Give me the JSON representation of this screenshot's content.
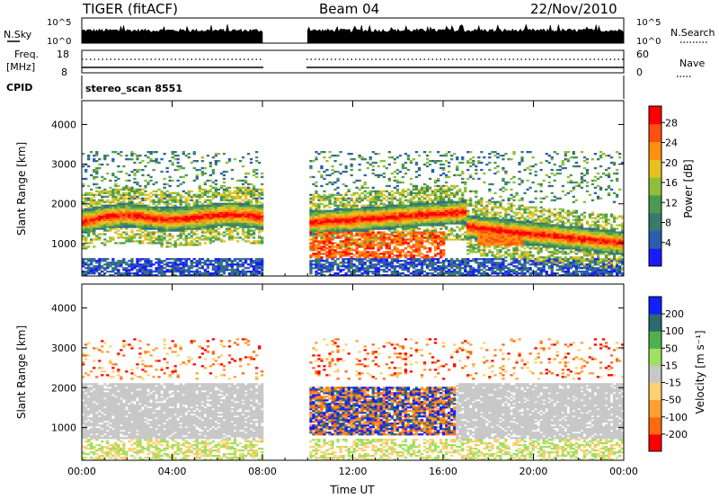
{
  "header": {
    "station": "TIGER (fitACF)",
    "beam": "Beam 04",
    "date": "22/Nov/2010"
  },
  "aux_panels": {
    "nsky_label": "N.Sky",
    "nsky_ticks": [
      "10^5",
      "10^0"
    ],
    "nsearch_label": "N.Search",
    "freq_label_line1": "Freq.",
    "freq_label_line2": "[MHz]",
    "freq_ticks": [
      "18",
      "8"
    ],
    "nave_label": "Nave",
    "nave_ticks": [
      "60",
      "0"
    ],
    "cpid_label": "CPID",
    "cpid_value": "stereo_scan 8551"
  },
  "colors": {
    "power_scale": [
      "#1a1aff",
      "#2a5db0",
      "#3a7a6a",
      "#4a9a50",
      "#8fbf3a",
      "#e8c020",
      "#ff9010",
      "#ff5010",
      "#ff0000"
    ],
    "velocity_scale": [
      "#ff0000",
      "#ff6a10",
      "#ffa030",
      "#ffd070",
      "#c8c8c8",
      "#a0e060",
      "#50b050",
      "#2a6a70",
      "#1020ff"
    ]
  },
  "chart_data": [
    {
      "type": "heatmap",
      "title": "Power",
      "xlabel": "",
      "ylabel": "Slant Range [km]",
      "x_ticks": [
        "00:00",
        "04:00",
        "08:00",
        "12:00",
        "16:00",
        "20:00",
        "00:00"
      ],
      "y_ticks": [
        "1000",
        "2000",
        "3000",
        "4000"
      ],
      "ylim": [
        180,
        4600
      ],
      "colorbar_label": "Power [dB]",
      "colorbar_ticks": [
        "4",
        "8",
        "12",
        "16",
        "20",
        "24",
        "28"
      ],
      "data_gap_hours": [
        8.0,
        10.0
      ]
    },
    {
      "type": "heatmap",
      "title": "Velocity",
      "xlabel": "Time UT",
      "ylabel": "Slant Range [km]",
      "x_ticks": [
        "00:00",
        "04:00",
        "08:00",
        "12:00",
        "16:00",
        "20:00",
        "00:00"
      ],
      "y_ticks": [
        "1000",
        "2000",
        "3000",
        "4000"
      ],
      "ylim": [
        180,
        4600
      ],
      "colorbar_label": "Velocity [m s⁻¹]",
      "colorbar_ticks": [
        "200",
        "100",
        "50",
        "15",
        "-15",
        "-50",
        "-100",
        "-200"
      ],
      "data_gap_hours": [
        8.0,
        10.0
      ]
    }
  ]
}
